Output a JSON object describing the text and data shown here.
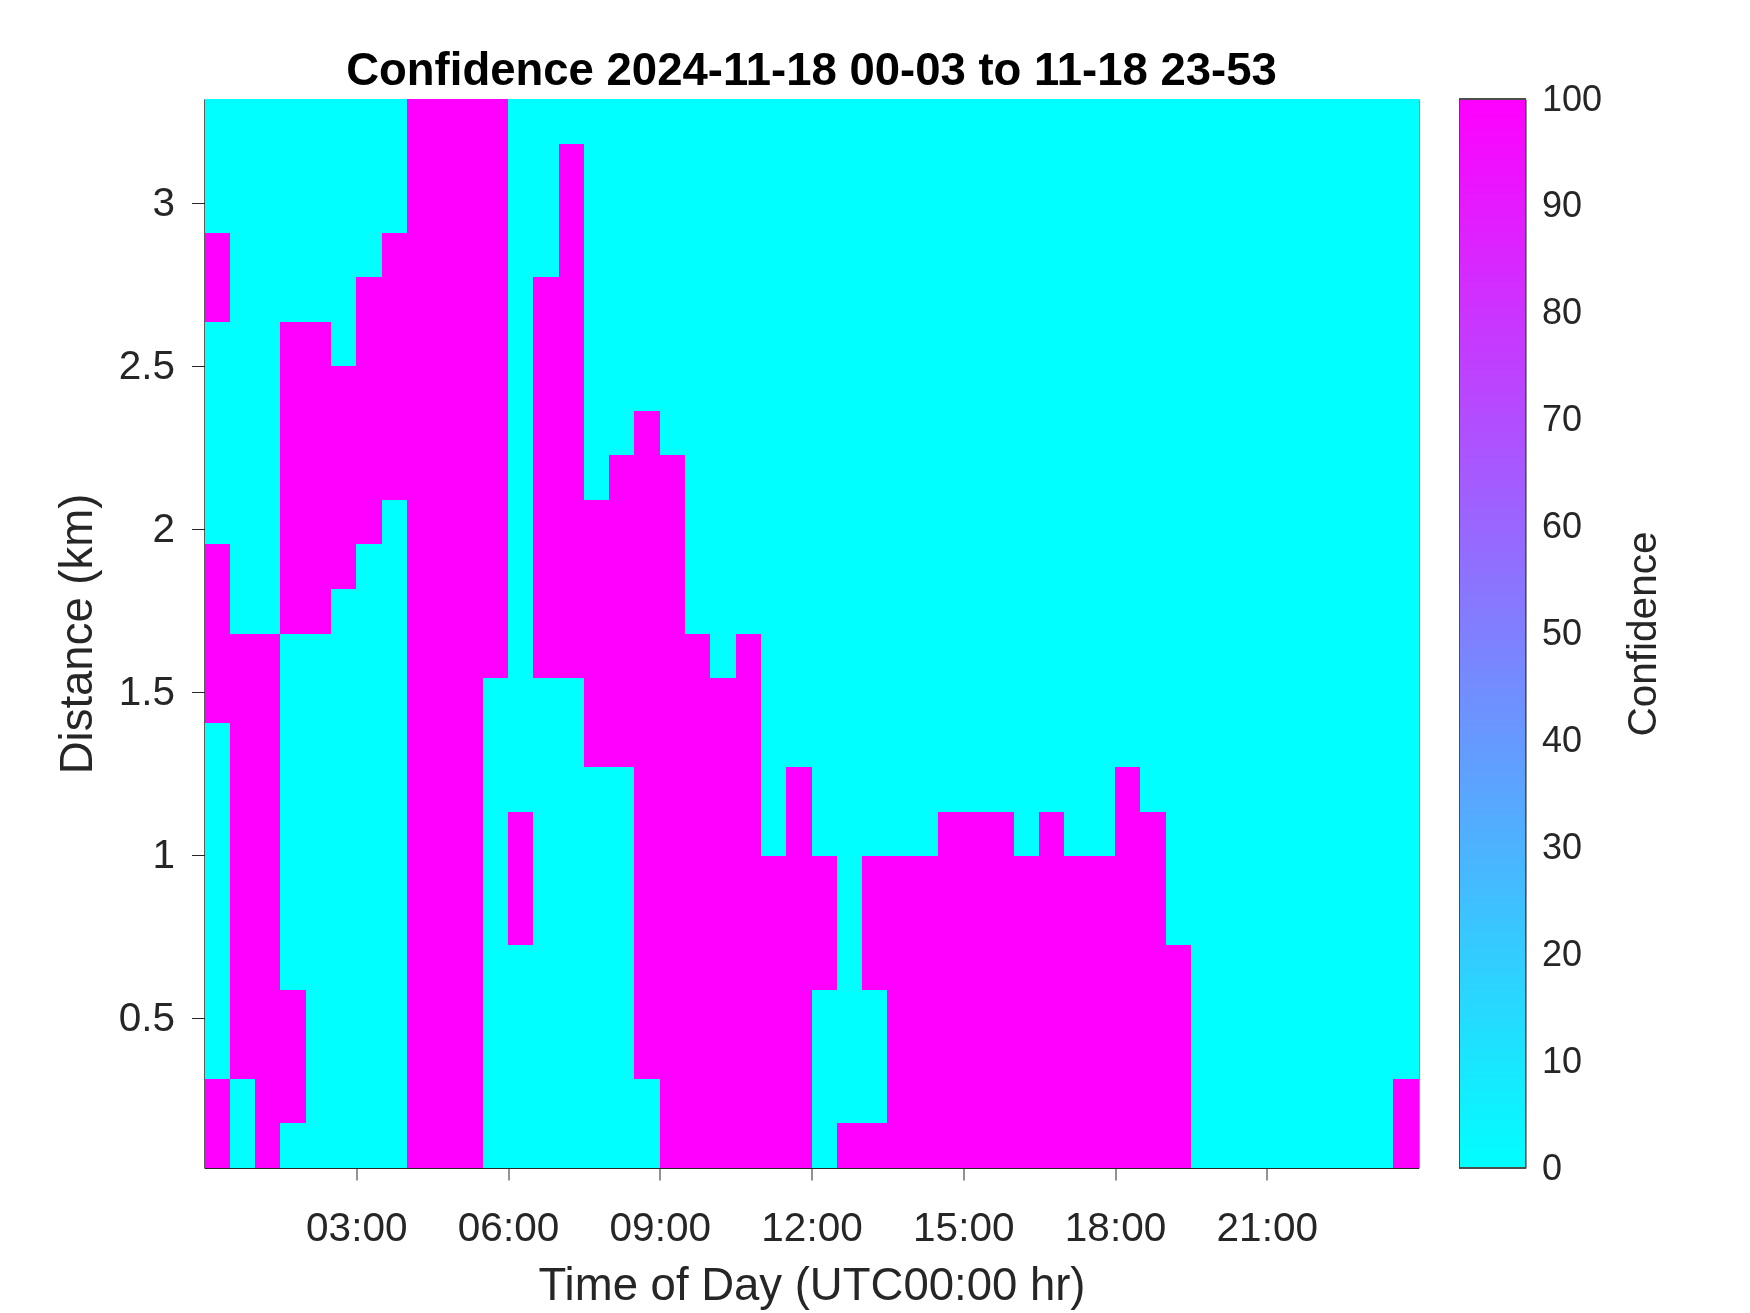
{
  "chart_data": {
    "type": "heatmap",
    "title": "Confidence 2024-11-18 00-03 to 11-18 23-53",
    "xlabel": "Time of Day (UTC00:00 hr)",
    "ylabel": "Distance (km)",
    "clabel": "Confidence",
    "x": [
      0.25,
      0.75,
      1.25,
      1.75,
      2.25,
      2.75,
      3.25,
      3.75,
      4.25,
      4.75,
      5.25,
      5.75,
      6.25,
      6.75,
      7.25,
      7.75,
      8.25,
      8.75,
      9.25,
      9.75,
      10.25,
      10.75,
      11.25,
      11.75,
      12.25,
      12.75,
      13.25,
      13.75,
      14.25,
      14.75,
      15.25,
      15.75,
      16.25,
      16.75,
      17.25,
      17.75,
      18.25,
      18.75,
      19.25,
      19.75,
      20.25,
      20.75,
      21.25,
      21.75,
      22.25,
      22.75,
      23.25,
      23.75
    ],
    "xlim": [
      0,
      24
    ],
    "xticks": [
      {
        "value": 3,
        "label": "03:00"
      },
      {
        "value": 6,
        "label": "06:00"
      },
      {
        "value": 9,
        "label": "09:00"
      },
      {
        "value": 12,
        "label": "12:00"
      },
      {
        "value": 15,
        "label": "15:00"
      },
      {
        "value": 18,
        "label": "18:00"
      },
      {
        "value": 21,
        "label": "21:00"
      }
    ],
    "ylim": [
      0.04,
      3.32
    ],
    "yticks": [
      0.5,
      1,
      1.5,
      2,
      2.5,
      3
    ],
    "clim": [
      0,
      100
    ],
    "cticks": [
      0,
      10,
      20,
      30,
      40,
      50,
      60,
      70,
      80,
      90,
      100
    ],
    "cells": [
      [
        0,
        0,
        0,
        0,
        0,
        0,
        0,
        0,
        100,
        100,
        100,
        100,
        0,
        0,
        0,
        0,
        0,
        0,
        0,
        0,
        0,
        0,
        0,
        0,
        0,
        0,
        0,
        0,
        0,
        0,
        0,
        0,
        0,
        0,
        0,
        0,
        0,
        0,
        0,
        0,
        0,
        0,
        0,
        0,
        0,
        0,
        0,
        0
      ],
      [
        0,
        0,
        0,
        0,
        0,
        0,
        0,
        0,
        100,
        100,
        100,
        100,
        0,
        0,
        100,
        0,
        0,
        0,
        0,
        0,
        0,
        0,
        0,
        0,
        0,
        0,
        0,
        0,
        0,
        0,
        0,
        0,
        0,
        0,
        0,
        0,
        0,
        0,
        0,
        0,
        0,
        0,
        0,
        0,
        0,
        0,
        0,
        0
      ],
      [
        0,
        0,
        0,
        0,
        0,
        0,
        0,
        0,
        100,
        100,
        100,
        100,
        0,
        0,
        100,
        0,
        0,
        0,
        0,
        0,
        0,
        0,
        0,
        0,
        0,
        0,
        0,
        0,
        0,
        0,
        0,
        0,
        0,
        0,
        0,
        0,
        0,
        0,
        0,
        0,
        0,
        0,
        0,
        0,
        0,
        0,
        0,
        0
      ],
      [
        100,
        0,
        0,
        0,
        0,
        0,
        0,
        100,
        100,
        100,
        100,
        100,
        0,
        0,
        100,
        0,
        0,
        0,
        0,
        0,
        0,
        0,
        0,
        0,
        0,
        0,
        0,
        0,
        0,
        0,
        0,
        0,
        0,
        0,
        0,
        0,
        0,
        0,
        0,
        0,
        0,
        0,
        0,
        0,
        0,
        0,
        0,
        0
      ],
      [
        100,
        0,
        0,
        0,
        0,
        0,
        100,
        100,
        100,
        100,
        100,
        100,
        0,
        100,
        100,
        0,
        0,
        0,
        0,
        0,
        0,
        0,
        0,
        0,
        0,
        0,
        0,
        0,
        0,
        0,
        0,
        0,
        0,
        0,
        0,
        0,
        0,
        0,
        0,
        0,
        0,
        0,
        0,
        0,
        0,
        0,
        0,
        0
      ],
      [
        0,
        0,
        0,
        100,
        100,
        0,
        100,
        100,
        100,
        100,
        100,
        100,
        0,
        100,
        100,
        0,
        0,
        0,
        0,
        0,
        0,
        0,
        0,
        0,
        0,
        0,
        0,
        0,
        0,
        0,
        0,
        0,
        0,
        0,
        0,
        0,
        0,
        0,
        0,
        0,
        0,
        0,
        0,
        0,
        0,
        0,
        0,
        0
      ],
      [
        0,
        0,
        0,
        100,
        100,
        100,
        100,
        100,
        100,
        100,
        100,
        100,
        0,
        100,
        100,
        0,
        0,
        0,
        0,
        0,
        0,
        0,
        0,
        0,
        0,
        0,
        0,
        0,
        0,
        0,
        0,
        0,
        0,
        0,
        0,
        0,
        0,
        0,
        0,
        0,
        0,
        0,
        0,
        0,
        0,
        0,
        0,
        0
      ],
      [
        0,
        0,
        0,
        100,
        100,
        100,
        100,
        100,
        100,
        100,
        100,
        100,
        0,
        100,
        100,
        0,
        0,
        100,
        0,
        0,
        0,
        0,
        0,
        0,
        0,
        0,
        0,
        0,
        0,
        0,
        0,
        0,
        0,
        0,
        0,
        0,
        0,
        0,
        0,
        0,
        0,
        0,
        0,
        0,
        0,
        0,
        0,
        0
      ],
      [
        0,
        0,
        0,
        100,
        100,
        100,
        100,
        100,
        100,
        100,
        100,
        100,
        0,
        100,
        100,
        0,
        100,
        100,
        100,
        0,
        0,
        0,
        0,
        0,
        0,
        0,
        0,
        0,
        0,
        0,
        0,
        0,
        0,
        0,
        0,
        0,
        0,
        0,
        0,
        0,
        0,
        0,
        0,
        0,
        0,
        0,
        0,
        0
      ],
      [
        0,
        0,
        0,
        100,
        100,
        100,
        100,
        0,
        100,
        100,
        100,
        100,
        0,
        100,
        100,
        100,
        100,
        100,
        100,
        0,
        0,
        0,
        0,
        0,
        0,
        0,
        0,
        0,
        0,
        0,
        0,
        0,
        0,
        0,
        0,
        0,
        0,
        0,
        0,
        0,
        0,
        0,
        0,
        0,
        0,
        0,
        0,
        0
      ],
      [
        100,
        0,
        0,
        100,
        100,
        100,
        0,
        0,
        100,
        100,
        100,
        100,
        0,
        100,
        100,
        100,
        100,
        100,
        100,
        0,
        0,
        0,
        0,
        0,
        0,
        0,
        0,
        0,
        0,
        0,
        0,
        0,
        0,
        0,
        0,
        0,
        0,
        0,
        0,
        0,
        0,
        0,
        0,
        0,
        0,
        0,
        0,
        0
      ],
      [
        100,
        0,
        0,
        100,
        100,
        0,
        0,
        0,
        100,
        100,
        100,
        100,
        0,
        100,
        100,
        100,
        100,
        100,
        100,
        0,
        0,
        0,
        0,
        0,
        0,
        0,
        0,
        0,
        0,
        0,
        0,
        0,
        0,
        0,
        0,
        0,
        0,
        0,
        0,
        0,
        0,
        0,
        0,
        0,
        0,
        0,
        0,
        0
      ],
      [
        100,
        100,
        100,
        0,
        0,
        0,
        0,
        0,
        100,
        100,
        100,
        100,
        0,
        100,
        100,
        100,
        100,
        100,
        100,
        100,
        0,
        100,
        0,
        0,
        0,
        0,
        0,
        0,
        0,
        0,
        0,
        0,
        0,
        0,
        0,
        0,
        0,
        0,
        0,
        0,
        0,
        0,
        0,
        0,
        0,
        0,
        0,
        0
      ],
      [
        100,
        100,
        100,
        0,
        0,
        0,
        0,
        0,
        100,
        100,
        100,
        0,
        0,
        0,
        0,
        100,
        100,
        100,
        100,
        100,
        100,
        100,
        0,
        0,
        0,
        0,
        0,
        0,
        0,
        0,
        0,
        0,
        0,
        0,
        0,
        0,
        0,
        0,
        0,
        0,
        0,
        0,
        0,
        0,
        0,
        0,
        0,
        0
      ],
      [
        0,
        100,
        100,
        0,
        0,
        0,
        0,
        0,
        100,
        100,
        100,
        0,
        0,
        0,
        0,
        100,
        100,
        100,
        100,
        100,
        100,
        100,
        0,
        0,
        0,
        0,
        0,
        0,
        0,
        0,
        0,
        0,
        0,
        0,
        0,
        0,
        0,
        0,
        0,
        0,
        0,
        0,
        0,
        0,
        0,
        0,
        0,
        0
      ],
      [
        0,
        100,
        100,
        0,
        0,
        0,
        0,
        0,
        100,
        100,
        100,
        0,
        0,
        0,
        0,
        0,
        0,
        100,
        100,
        100,
        100,
        100,
        0,
        100,
        0,
        0,
        0,
        0,
        0,
        0,
        0,
        0,
        0,
        0,
        0,
        0,
        100,
        0,
        0,
        0,
        0,
        0,
        0,
        0,
        0,
        0,
        0,
        0
      ],
      [
        0,
        100,
        100,
        0,
        0,
        0,
        0,
        0,
        100,
        100,
        100,
        0,
        100,
        0,
        0,
        0,
        0,
        100,
        100,
        100,
        100,
        100,
        0,
        100,
        0,
        0,
        0,
        0,
        0,
        100,
        100,
        100,
        0,
        100,
        0,
        0,
        100,
        100,
        0,
        0,
        0,
        0,
        0,
        0,
        0,
        0,
        0,
        0
      ],
      [
        0,
        100,
        100,
        0,
        0,
        0,
        0,
        0,
        100,
        100,
        100,
        0,
        100,
        0,
        0,
        0,
        0,
        100,
        100,
        100,
        100,
        100,
        100,
        100,
        100,
        0,
        100,
        100,
        100,
        100,
        100,
        100,
        100,
        100,
        100,
        100,
        100,
        100,
        0,
        0,
        0,
        0,
        0,
        0,
        0,
        0,
        0,
        0
      ],
      [
        0,
        100,
        100,
        0,
        0,
        0,
        0,
        0,
        100,
        100,
        100,
        0,
        100,
        0,
        0,
        0,
        0,
        100,
        100,
        100,
        100,
        100,
        100,
        100,
        100,
        0,
        100,
        100,
        100,
        100,
        100,
        100,
        100,
        100,
        100,
        100,
        100,
        100,
        0,
        0,
        0,
        0,
        0,
        0,
        0,
        0,
        0,
        0
      ],
      [
        0,
        100,
        100,
        0,
        0,
        0,
        0,
        0,
        100,
        100,
        100,
        0,
        0,
        0,
        0,
        0,
        0,
        100,
        100,
        100,
        100,
        100,
        100,
        100,
        100,
        0,
        100,
        100,
        100,
        100,
        100,
        100,
        100,
        100,
        100,
        100,
        100,
        100,
        100,
        0,
        0,
        0,
        0,
        0,
        0,
        0,
        0,
        0
      ],
      [
        0,
        100,
        100,
        100,
        0,
        0,
        0,
        0,
        100,
        100,
        100,
        0,
        0,
        0,
        0,
        0,
        0,
        100,
        100,
        100,
        100,
        100,
        100,
        100,
        0,
        0,
        0,
        100,
        100,
        100,
        100,
        100,
        100,
        100,
        100,
        100,
        100,
        100,
        100,
        0,
        0,
        0,
        0,
        0,
        0,
        0,
        0,
        0
      ],
      [
        0,
        100,
        100,
        100,
        0,
        0,
        0,
        0,
        100,
        100,
        100,
        0,
        0,
        0,
        0,
        0,
        0,
        100,
        100,
        100,
        100,
        100,
        100,
        100,
        0,
        0,
        0,
        100,
        100,
        100,
        100,
        100,
        100,
        100,
        100,
        100,
        100,
        100,
        100,
        0,
        0,
        0,
        0,
        0,
        0,
        0,
        0,
        0
      ],
      [
        100,
        0,
        100,
        100,
        0,
        0,
        0,
        0,
        100,
        100,
        100,
        0,
        0,
        0,
        0,
        0,
        0,
        0,
        100,
        100,
        100,
        100,
        100,
        100,
        0,
        0,
        0,
        100,
        100,
        100,
        100,
        100,
        100,
        100,
        100,
        100,
        100,
        100,
        100,
        0,
        0,
        0,
        0,
        0,
        0,
        0,
        0,
        100
      ],
      [
        100,
        0,
        100,
        0,
        0,
        0,
        0,
        0,
        100,
        100,
        100,
        0,
        0,
        0,
        0,
        0,
        0,
        0,
        100,
        100,
        100,
        100,
        100,
        100,
        0,
        100,
        100,
        100,
        100,
        100,
        100,
        100,
        100,
        100,
        100,
        100,
        100,
        100,
        100,
        0,
        0,
        0,
        0,
        0,
        0,
        0,
        0,
        100
      ]
    ]
  }
}
